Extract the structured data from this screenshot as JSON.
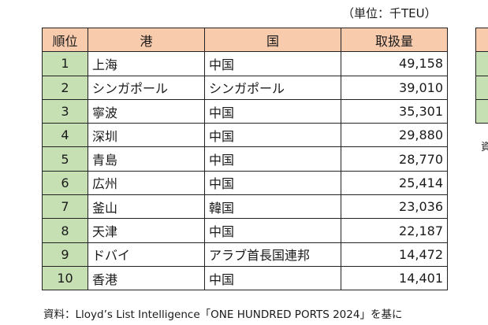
{
  "unit_label": "（単位：千TEU）",
  "table": {
    "headers": [
      "順位",
      "港",
      "国",
      "取扱量"
    ],
    "rows": [
      {
        "rank": "1",
        "port": "上海",
        "country": "中国",
        "volume": "49,158"
      },
      {
        "rank": "2",
        "port": "シンガポール",
        "country": "シンガポール",
        "volume": "39,010"
      },
      {
        "rank": "3",
        "port": "寧波",
        "country": "中国",
        "volume": "35,301"
      },
      {
        "rank": "4",
        "port": "深圳",
        "country": "中国",
        "volume": "29,880"
      },
      {
        "rank": "5",
        "port": "青島",
        "country": "中国",
        "volume": "28,770"
      },
      {
        "rank": "6",
        "port": "広州",
        "country": "中国",
        "volume": "25,414"
      },
      {
        "rank": "7",
        "port": "釜山",
        "country": "韓国",
        "volume": "23,036"
      },
      {
        "rank": "8",
        "port": "天津",
        "country": "中国",
        "volume": "22,187"
      },
      {
        "rank": "9",
        "port": "ドバイ",
        "country": "アラブ首長国連邦",
        "volume": "14,472"
      },
      {
        "rank": "10",
        "port": "香港",
        "country": "中国",
        "volume": "14,401"
      }
    ]
  },
  "side_fragment_text": "資",
  "source": "資料：Lloyd’s List Intelligence「ONE HUNDRED PORTS 2024」を基に",
  "colors": {
    "header_bg": "#f8cbad",
    "rank_bg": "#c6e0b4",
    "border": "#222222"
  }
}
